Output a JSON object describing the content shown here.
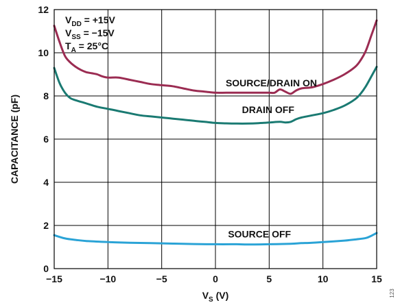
{
  "chart_data": {
    "type": "line",
    "title": "",
    "xlabel_main": "V",
    "xlabel_sub": "S",
    "xlabel_unit": " (V)",
    "ylabel": "CAPACITANCE (pF)",
    "xlim": [
      -15,
      15
    ],
    "ylim": [
      0,
      12
    ],
    "xticks": [
      -15,
      -10,
      -5,
      0,
      5,
      10,
      15
    ],
    "xtick_labels": [
      "−15",
      "−10",
      "−5",
      "0",
      "5",
      "10",
      "15"
    ],
    "yticks": [
      0,
      2,
      4,
      6,
      8,
      10,
      12
    ],
    "ytick_labels": [
      "0",
      "2",
      "4",
      "6",
      "8",
      "10",
      "12"
    ],
    "grid": true,
    "legend": "none",
    "conditions": [
      {
        "main": "V",
        "sub": "DD",
        "rest": " = +15V"
      },
      {
        "main": "V",
        "sub": "SS",
        "rest": " = −15V"
      },
      {
        "main": "T",
        "sub": "A",
        "rest": " = 25°C"
      }
    ],
    "series": [
      {
        "name": "SOURCE/DRAIN ON",
        "color": "#9b2c52",
        "x": [
          -15,
          -14.5,
          -14,
          -13.5,
          -13,
          -12.5,
          -12,
          -11.5,
          -11,
          -10.5,
          -10,
          -9,
          -8,
          -7,
          -6,
          -5,
          -4,
          -3,
          -2,
          -1,
          0,
          1,
          2,
          3,
          4,
          5,
          5.5,
          6,
          6.5,
          7,
          7.5,
          8,
          9,
          10,
          11,
          12,
          13,
          13.5,
          14,
          14.5,
          15
        ],
        "y": [
          11.25,
          10.5,
          9.85,
          9.55,
          9.35,
          9.2,
          9.1,
          9.05,
          9.0,
          8.9,
          8.85,
          8.85,
          8.75,
          8.65,
          8.55,
          8.5,
          8.45,
          8.35,
          8.25,
          8.2,
          8.15,
          8.15,
          8.15,
          8.15,
          8.15,
          8.15,
          8.15,
          8.3,
          8.2,
          8.1,
          8.25,
          8.35,
          8.4,
          8.55,
          8.75,
          9.0,
          9.35,
          9.65,
          10.1,
          10.8,
          11.5
        ]
      },
      {
        "name": "DRAIN OFF",
        "color": "#1a7a72",
        "x": [
          -15,
          -14.5,
          -14,
          -13.5,
          -13,
          -12,
          -11,
          -10,
          -9,
          -8,
          -7,
          -6,
          -5,
          -4,
          -3,
          -2,
          -1,
          0,
          1,
          2,
          3,
          4,
          5,
          6,
          6.5,
          7,
          7.5,
          8,
          9,
          10,
          11,
          12,
          13,
          13.5,
          14,
          14.5,
          15
        ],
        "y": [
          9.3,
          8.6,
          8.15,
          7.9,
          7.8,
          7.65,
          7.5,
          7.4,
          7.3,
          7.2,
          7.1,
          7.05,
          7.0,
          6.95,
          6.9,
          6.85,
          6.8,
          6.75,
          6.73,
          6.72,
          6.72,
          6.74,
          6.77,
          6.8,
          6.77,
          6.8,
          6.92,
          7.0,
          7.1,
          7.2,
          7.35,
          7.55,
          7.85,
          8.1,
          8.45,
          8.9,
          9.35
        ]
      },
      {
        "name": "SOURCE OFF",
        "color": "#2aa3d6",
        "x": [
          -15,
          -14,
          -13,
          -12,
          -10,
          -8,
          -5,
          -2,
          0,
          2,
          3,
          5,
          7,
          8,
          9,
          10,
          12,
          13,
          14,
          14.5,
          15
        ],
        "y": [
          1.55,
          1.4,
          1.33,
          1.28,
          1.23,
          1.2,
          1.17,
          1.14,
          1.13,
          1.13,
          1.12,
          1.13,
          1.15,
          1.18,
          1.2,
          1.23,
          1.3,
          1.35,
          1.42,
          1.52,
          1.65
        ]
      }
    ],
    "series_label_anchor": [
      {
        "x": 5.2,
        "y": 8.45
      },
      {
        "x": 4.9,
        "y": 7.2
      },
      {
        "x": 4.1,
        "y": 1.45
      }
    ],
    "figure_id": "123"
  }
}
